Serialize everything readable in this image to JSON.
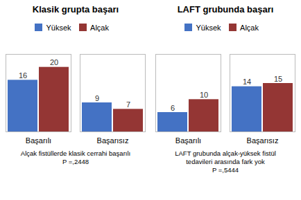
{
  "chart_data": [
    {
      "type": "bar",
      "title": "Klasik grupta başarı",
      "categories": [
        "Başarılı",
        "Başarısız"
      ],
      "series": [
        {
          "name": "Yüksek",
          "color": "#4472C4",
          "values": [
            16,
            9
          ]
        },
        {
          "name": "Alçak",
          "color": "#943634",
          "values": [
            20,
            7
          ]
        }
      ],
      "ylim": [
        0,
        24
      ],
      "yticks": [],
      "grid": false,
      "legend": "top",
      "data_labels": true,
      "tick_labels": "x",
      "annotations": [
        "Alçak fistüllerde klasik cerrahi başarılı",
        "P =,2448"
      ]
    },
    {
      "type": "bar",
      "title": "LAFT grubunda başarı",
      "categories": [
        "Başarılı",
        "Başarısız"
      ],
      "series": [
        {
          "name": "Yüksek",
          "color": "#4472C4",
          "values": [
            6,
            14
          ]
        },
        {
          "name": "Alçak",
          "color": "#943634",
          "values": [
            10,
            15
          ]
        }
      ],
      "ylim": [
        0,
        24
      ],
      "yticks": [],
      "grid": false,
      "legend": "top",
      "data_labels": true,
      "tick_labels": "x",
      "annotations": [
        "LAFT grubunda  alçak-yüksek fistül",
        "tedavileri arasında fark yok",
        "P =,5444"
      ]
    }
  ]
}
